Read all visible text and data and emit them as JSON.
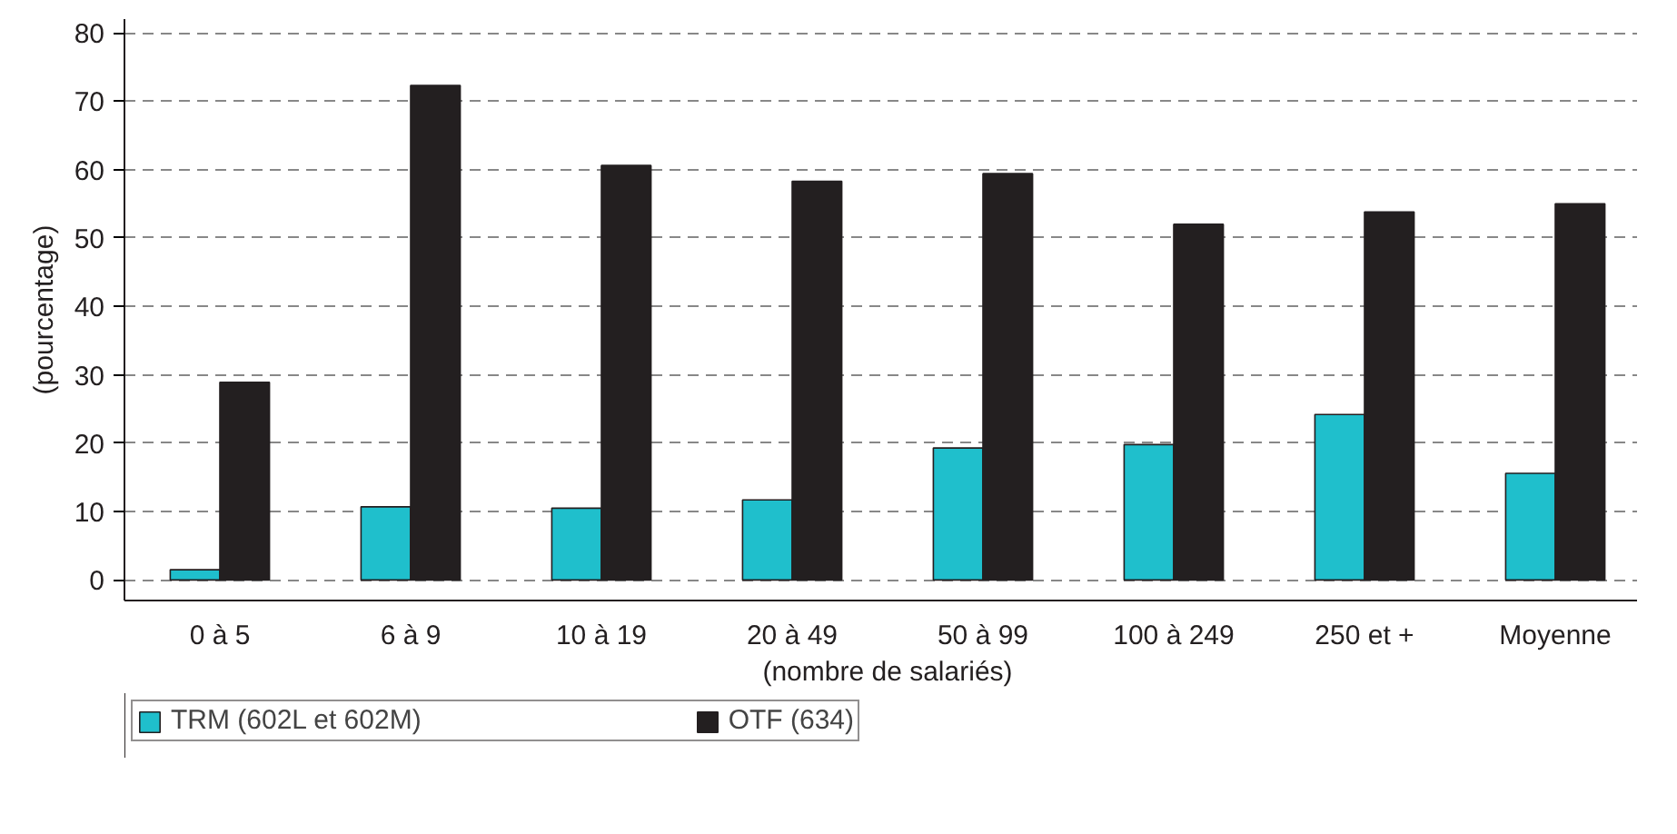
{
  "chart_data": {
    "type": "bar",
    "xlabel": "(nombre de salariés)",
    "ylabel": "(pourcentage)",
    "categories": [
      "0 à 5",
      "6 à 9",
      "10 à 19",
      "20 à 49",
      "50 à 99",
      "100 à 249",
      "250 et +",
      "Moyenne"
    ],
    "series": [
      {
        "name": "TRM (602L et 602M)",
        "color": "#1fbfcc",
        "values": [
          1.5,
          10.7,
          10.5,
          11.7,
          19.3,
          19.8,
          24.2,
          15.6
        ]
      },
      {
        "name": "OTF (634)",
        "color": "#231f20",
        "values": [
          28.9,
          72.3,
          60.6,
          58.3,
          59.4,
          52.0,
          53.8,
          55.0
        ]
      }
    ],
    "ylim": [
      -3,
      82
    ],
    "yticks": [
      0,
      10,
      20,
      30,
      40,
      50,
      60,
      70,
      80
    ],
    "grid": "y",
    "legend": "bottom"
  }
}
